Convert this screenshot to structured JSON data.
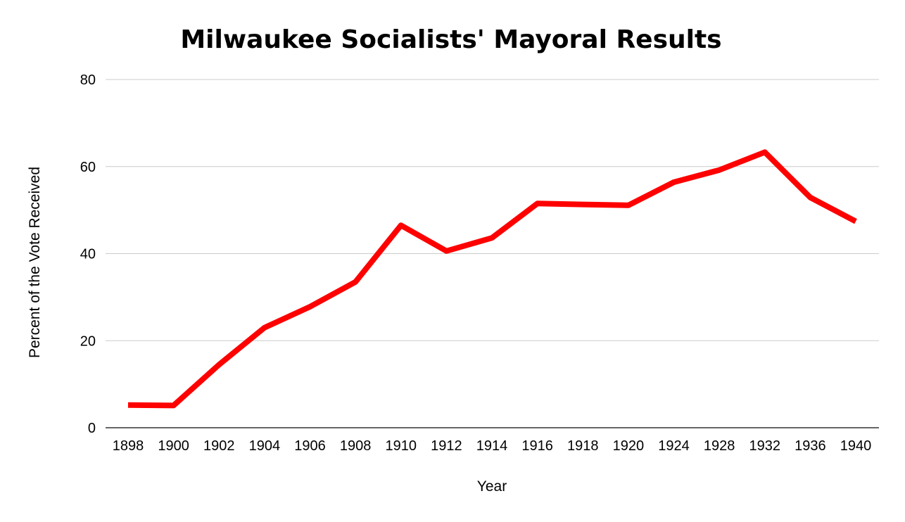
{
  "chart_data": {
    "type": "line",
    "title": "Milwaukee Socialists' Mayoral Results",
    "xlabel": "Year",
    "ylabel": "Percent of the Vote Received",
    "categories": [
      "1898",
      "1900",
      "1902",
      "1904",
      "1906",
      "1908",
      "1910",
      "1912",
      "1914",
      "1916",
      "1918",
      "1920",
      "1924",
      "1928",
      "1932",
      "1936",
      "1940"
    ],
    "series": [
      {
        "values": [
          5.2,
          5.1,
          14.5,
          23.0,
          27.8,
          33.5,
          46.5,
          40.6,
          43.6,
          51.5,
          51.3,
          51.1,
          56.4,
          59.2,
          63.3,
          52.9,
          47.4
        ],
        "color": "#ff0000"
      }
    ],
    "ylim": [
      0,
      80
    ],
    "yticks": [
      0,
      20,
      40,
      60,
      80
    ],
    "grid": true,
    "legend": "none"
  }
}
